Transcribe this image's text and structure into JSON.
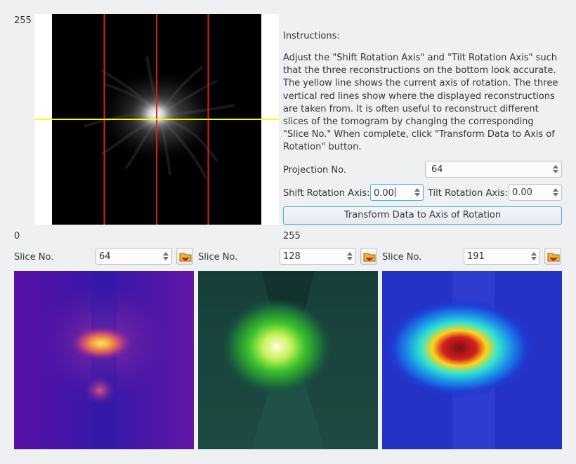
{
  "projection_view": {
    "axis_max_label": "255",
    "axis_min_label": "0",
    "x_axis_max_label": "255",
    "lines": {
      "vertical_count": 3,
      "vertical_color": "#e0201a",
      "horizontal_color": "#ffff00"
    }
  },
  "instructions": {
    "title": "Instructions:",
    "body": "Adjust the \"Shift Rotation Axis\" and \"Tilt Rotation Axis\" such that the three reconstructions on the bottom look accurate. The yellow line shows the current axis of rotation. The three vertical red lines show where the displayed reconstructions are taken from. It is often useful to reconstruct different slices of the tomogram by changing the corresponding \"Slice No.\" When complete, click \"Transform Data to Axis of Rotation\" button."
  },
  "controls": {
    "projection_label": "Projection No.",
    "projection_value": "64",
    "shift_label": "Shift Rotation Axis:",
    "shift_value": "0.00",
    "tilt_label": "Tilt Rotation Axis:",
    "tilt_value": "0.00",
    "transform_button": "Transform Data to Axis of Rotation"
  },
  "slices": [
    {
      "label": "Slice No.",
      "value": "64",
      "colormap": "plasma"
    },
    {
      "label": "Slice No.",
      "value": "128",
      "colormap": "green"
    },
    {
      "label": "Slice No.",
      "value": "191",
      "colormap": "jet"
    }
  ],
  "icons": {
    "slice_button_icon": "folder-icon",
    "spin_up": "arrow-up-icon",
    "spin_down": "arrow-down-icon"
  },
  "colors": {
    "accent": "#3daee9",
    "background": "#eff0f1"
  }
}
